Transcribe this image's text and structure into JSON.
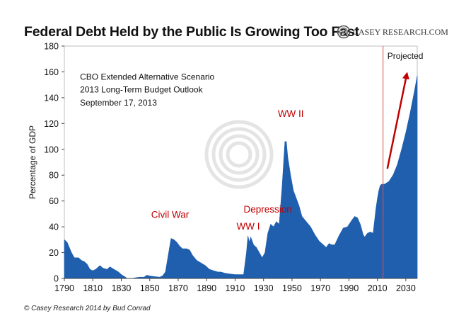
{
  "title": "Federal Debt Held by the Public Is Growing Too Fast",
  "logo": {
    "icon": "casey-research-swirl-icon",
    "text": "CASEY RESEARCH.COM"
  },
  "copyright": "© Casey Research 2014 by Bud Conrad",
  "colors": {
    "area": "#1f5fae",
    "annotation": "#c00000",
    "divider": "#d9534f",
    "arrow": "#c00000"
  },
  "chart_data": {
    "type": "area",
    "title": "Federal Debt Held by the Public Is Growing Too Fast",
    "ylabel": "Percentage of GDP",
    "xlabel": "",
    "xlim": [
      1790,
      2038
    ],
    "ylim": [
      0,
      180
    ],
    "x_ticks": [
      1790,
      1810,
      1830,
      1850,
      1870,
      1890,
      1910,
      1930,
      1950,
      1970,
      1990,
      2010,
      2030
    ],
    "y_ticks": [
      0,
      20,
      40,
      60,
      80,
      100,
      120,
      140,
      160,
      180
    ],
    "grid": false,
    "legend": "none",
    "series": [
      {
        "points": [
          [
            1790,
            30
          ],
          [
            1792,
            28
          ],
          [
            1795,
            20
          ],
          [
            1797,
            16
          ],
          [
            1800,
            16
          ],
          [
            1802,
            14
          ],
          [
            1804,
            13
          ],
          [
            1806,
            11
          ],
          [
            1808,
            7
          ],
          [
            1810,
            6
          ],
          [
            1812,
            7
          ],
          [
            1815,
            10
          ],
          [
            1817,
            8
          ],
          [
            1820,
            7
          ],
          [
            1822,
            9
          ],
          [
            1825,
            7
          ],
          [
            1828,
            5
          ],
          [
            1830,
            3
          ],
          [
            1833,
            1
          ],
          [
            1834,
            0
          ],
          [
            1835,
            0
          ],
          [
            1837,
            0
          ],
          [
            1840,
            0.5
          ],
          [
            1843,
            1
          ],
          [
            1846,
            1
          ],
          [
            1848,
            2.5
          ],
          [
            1850,
            2
          ],
          [
            1853,
            1.5
          ],
          [
            1857,
            1
          ],
          [
            1859,
            2
          ],
          [
            1861,
            5
          ],
          [
            1863,
            18
          ],
          [
            1865,
            31
          ],
          [
            1867,
            30
          ],
          [
            1869,
            28
          ],
          [
            1871,
            25
          ],
          [
            1873,
            23
          ],
          [
            1876,
            23
          ],
          [
            1878,
            22
          ],
          [
            1880,
            18
          ],
          [
            1883,
            14
          ],
          [
            1886,
            12
          ],
          [
            1889,
            10
          ],
          [
            1892,
            7
          ],
          [
            1895,
            6
          ],
          [
            1898,
            5
          ],
          [
            1900,
            5
          ],
          [
            1903,
            4
          ],
          [
            1906,
            3.5
          ],
          [
            1910,
            3
          ],
          [
            1914,
            3
          ],
          [
            1916,
            3
          ],
          [
            1918,
            20
          ],
          [
            1919,
            33
          ],
          [
            1920,
            28
          ],
          [
            1921,
            32
          ],
          [
            1923,
            26
          ],
          [
            1925,
            24
          ],
          [
            1927,
            20
          ],
          [
            1929,
            16
          ],
          [
            1931,
            20
          ],
          [
            1933,
            35
          ],
          [
            1935,
            42
          ],
          [
            1937,
            40
          ],
          [
            1939,
            44
          ],
          [
            1941,
            42
          ],
          [
            1943,
            71
          ],
          [
            1945,
            106
          ],
          [
            1946,
            106
          ],
          [
            1947,
            94
          ],
          [
            1949,
            80
          ],
          [
            1951,
            68
          ],
          [
            1953,
            62
          ],
          [
            1955,
            56
          ],
          [
            1957,
            48
          ],
          [
            1960,
            44
          ],
          [
            1963,
            40
          ],
          [
            1966,
            34
          ],
          [
            1969,
            29
          ],
          [
            1972,
            26
          ],
          [
            1974,
            24
          ],
          [
            1976,
            27
          ],
          [
            1978,
            26
          ],
          [
            1980,
            26
          ],
          [
            1983,
            33
          ],
          [
            1986,
            39
          ],
          [
            1989,
            40
          ],
          [
            1992,
            45
          ],
          [
            1994,
            48
          ],
          [
            1996,
            47
          ],
          [
            1998,
            42
          ],
          [
            2000,
            34
          ],
          [
            2001,
            32
          ],
          [
            2003,
            35
          ],
          [
            2005,
            36
          ],
          [
            2007,
            35
          ],
          [
            2009,
            54
          ],
          [
            2010,
            62
          ],
          [
            2011,
            68
          ],
          [
            2012,
            72
          ],
          [
            2013,
            73
          ],
          [
            2015,
            73
          ],
          [
            2018,
            75
          ],
          [
            2021,
            80
          ],
          [
            2024,
            88
          ],
          [
            2027,
            100
          ],
          [
            2030,
            113
          ],
          [
            2033,
            128
          ],
          [
            2036,
            145
          ],
          [
            2038,
            157
          ]
        ]
      }
    ],
    "annotations": [
      {
        "text": "CBO Extended Alternative Scenario",
        "x": 1801,
        "y": 154
      },
      {
        "text": "2013 Long-Term Budget Outlook",
        "x": 1801,
        "y": 144
      },
      {
        "text": "September 17, 2013",
        "x": 1801,
        "y": 134
      },
      {
        "text": "Projected",
        "x": 2017,
        "y": 170
      },
      {
        "text": "WW II",
        "x": 1940,
        "y": 125
      },
      {
        "text": "Civil War",
        "x": 1851,
        "y": 47
      },
      {
        "text": "Depression",
        "x": 1916,
        "y": 51
      },
      {
        "text": "WW I",
        "x": 1911,
        "y": 38
      }
    ],
    "projection_start": 2014,
    "arrow": {
      "from": [
        2017,
        85
      ],
      "to": [
        2031,
        160
      ]
    }
  }
}
